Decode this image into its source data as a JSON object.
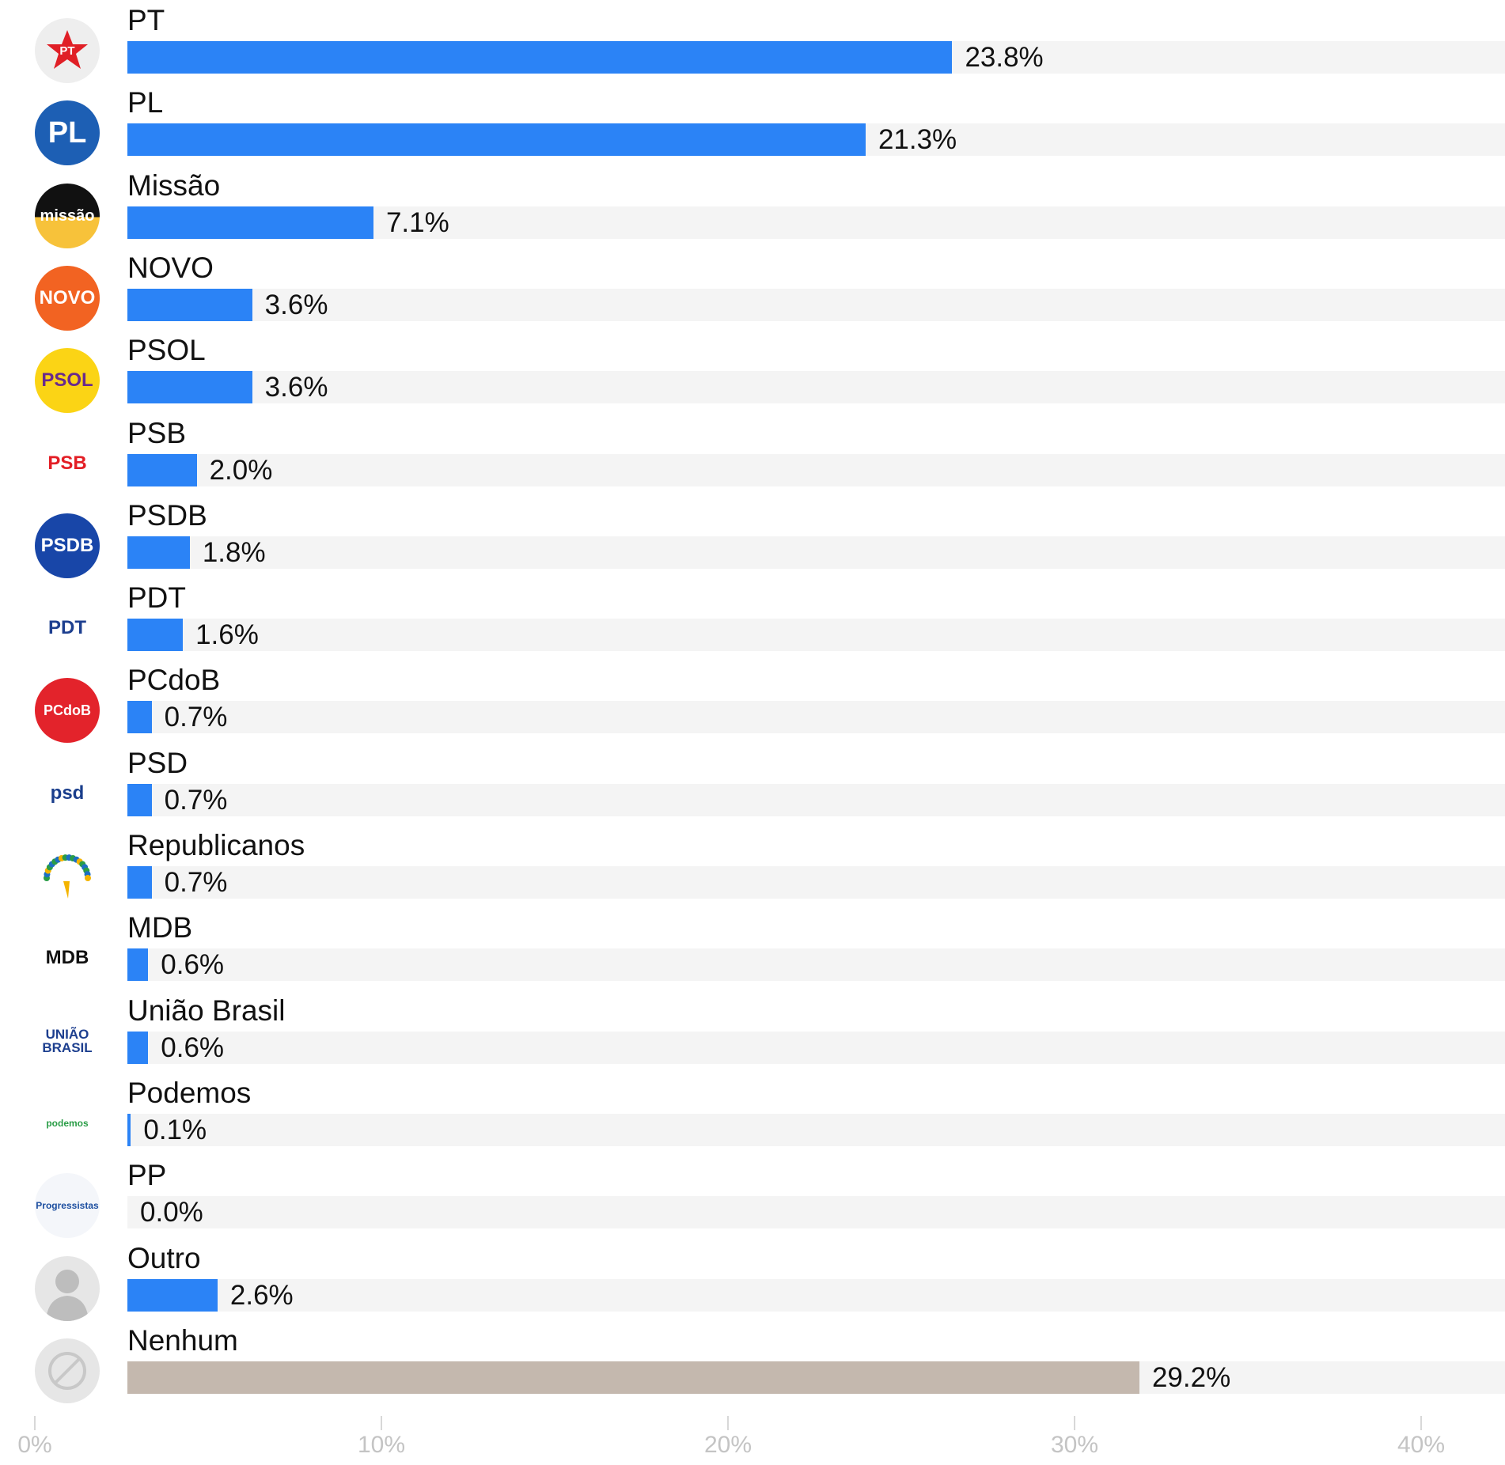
{
  "chart_data": {
    "type": "bar",
    "orientation": "horizontal",
    "title": "",
    "xlabel": "",
    "ylabel": "",
    "xlim": [
      0,
      40
    ],
    "x_ticks": [
      "0%",
      "10%",
      "20%",
      "30%",
      "40%"
    ],
    "categories": [
      "PT",
      "PL",
      "Missão",
      "NOVO",
      "PSOL",
      "PSB",
      "PSDB",
      "PDT",
      "PCdoB",
      "PSD",
      "Republicanos",
      "MDB",
      "União Brasil",
      "Podemos",
      "PP",
      "Outro",
      "Nenhum"
    ],
    "values": [
      23.8,
      21.3,
      7.1,
      3.6,
      3.6,
      2.0,
      1.8,
      1.6,
      0.7,
      0.7,
      0.7,
      0.6,
      0.6,
      0.1,
      0.0,
      2.6,
      29.2
    ],
    "value_labels": [
      "23.8%",
      "21.3%",
      "7.1%",
      "3.6%",
      "3.6%",
      "2.0%",
      "1.8%",
      "1.6%",
      "0.7%",
      "0.7%",
      "0.7%",
      "0.6%",
      "0.6%",
      "0.1%",
      "0.0%",
      "2.6%",
      "29.2%"
    ],
    "bar_colors": [
      "#2b83f6",
      "#2b83f6",
      "#2b83f6",
      "#2b83f6",
      "#2b83f6",
      "#2b83f6",
      "#2b83f6",
      "#2b83f6",
      "#2b83f6",
      "#2b83f6",
      "#2b83f6",
      "#2b83f6",
      "#2b83f6",
      "#2b83f6",
      "#2b83f6",
      "#2b83f6",
      "#c4b8ae"
    ],
    "grid": false,
    "legend": "none",
    "logos": [
      {
        "icon": "pt-star-icon",
        "text": "PT",
        "bg": "#eeeeee",
        "fg": "#e01f26"
      },
      {
        "icon": "pl-logo-icon",
        "text": "PL",
        "bg": "#1d5fb4",
        "fg": "#ffffff"
      },
      {
        "icon": "missao-logo-icon",
        "text": "missão",
        "bg": "#f7c23a",
        "fg": "#ffffff"
      },
      {
        "icon": "novo-logo-icon",
        "text": "NOVO",
        "bg": "#f26322",
        "fg": "#ffffff"
      },
      {
        "icon": "psol-logo-icon",
        "text": "PSOL",
        "bg": "#fbd415",
        "fg": "#6a2a8c"
      },
      {
        "icon": "psb-logo-icon",
        "text": "PSB",
        "bg": "#ffffff",
        "fg": "#e31e25"
      },
      {
        "icon": "psdb-logo-icon",
        "text": "PSDB",
        "bg": "#1846a8",
        "fg": "#ffffff"
      },
      {
        "icon": "pdt-logo-icon",
        "text": "PDT",
        "bg": "#ffffff",
        "fg": "#1d3f8f"
      },
      {
        "icon": "pcdob-logo-icon",
        "text": "PCdoB",
        "bg": "#e3232b",
        "fg": "#ffffff"
      },
      {
        "icon": "psd-logo-icon",
        "text": "psd",
        "bg": "#ffffff",
        "fg": "#1a3e8c"
      },
      {
        "icon": "republicanos-logo-icon",
        "text": "",
        "bg": "#ffffff",
        "fg": "#2a9d47"
      },
      {
        "icon": "mdb-logo-icon",
        "text": "MDB",
        "bg": "#ffffff",
        "fg": "#111111"
      },
      {
        "icon": "uniao-brasil-logo-icon",
        "text": "UNIÃO BRASIL",
        "bg": "#ffffff",
        "fg": "#1d3f8f"
      },
      {
        "icon": "podemos-logo-icon",
        "text": "podemos",
        "bg": "#ffffff",
        "fg": "#2a9d47"
      },
      {
        "icon": "progressistas-logo-icon",
        "text": "Progressistas",
        "bg": "#f4f6fa",
        "fg": "#1d4fa0"
      },
      {
        "icon": "person-silhouette-icon",
        "text": "",
        "bg": "#e6e6e6",
        "fg": "#bdbdbd"
      },
      {
        "icon": "prohibited-circle-icon",
        "text": "",
        "bg": "#e6e6e6",
        "fg": "#c8c8c8"
      }
    ]
  }
}
